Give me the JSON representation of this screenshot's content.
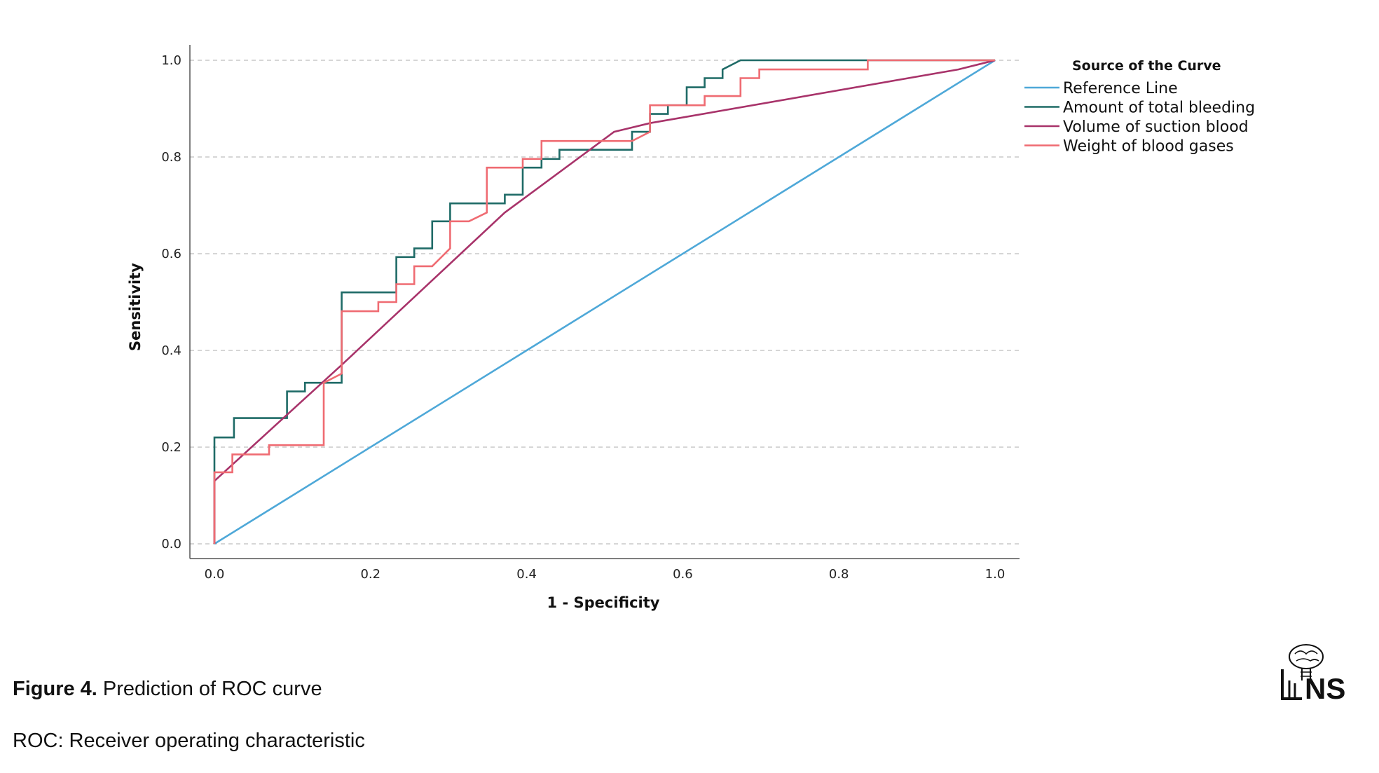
{
  "chart_data": {
    "type": "line",
    "title": "",
    "xlabel": "1 - Specificity",
    "ylabel": "Sensitivity",
    "xlim": [
      0,
      1
    ],
    "ylim": [
      0,
      1
    ],
    "x_ticks": [
      "0.0",
      "0.2",
      "0.4",
      "0.6",
      "0.8",
      "1.0"
    ],
    "y_ticks": [
      "0.0",
      "0.2",
      "0.4",
      "0.6",
      "0.8",
      "1.0"
    ],
    "grid": "horizontal dashed",
    "legend_title": "Source of the Curve",
    "legend_position": "right",
    "series": [
      {
        "name": "Reference Line",
        "color": "#4ea8d8",
        "points": [
          [
            0,
            0
          ],
          [
            1,
            1
          ]
        ]
      },
      {
        "name": "Amount of total bleeding",
        "color": "#1f6b67",
        "points": [
          [
            0,
            0
          ],
          [
            0,
            0.22
          ],
          [
            0.025,
            0.22
          ],
          [
            0.025,
            0.26
          ],
          [
            0.093,
            0.26
          ],
          [
            0.093,
            0.315
          ],
          [
            0.116,
            0.315
          ],
          [
            0.116,
            0.333
          ],
          [
            0.163,
            0.333
          ],
          [
            0.163,
            0.52
          ],
          [
            0.233,
            0.52
          ],
          [
            0.233,
            0.593
          ],
          [
            0.256,
            0.593
          ],
          [
            0.256,
            0.611
          ],
          [
            0.279,
            0.611
          ],
          [
            0.279,
            0.667
          ],
          [
            0.302,
            0.667
          ],
          [
            0.302,
            0.704
          ],
          [
            0.372,
            0.704
          ],
          [
            0.372,
            0.722
          ],
          [
            0.395,
            0.722
          ],
          [
            0.395,
            0.778
          ],
          [
            0.419,
            0.778
          ],
          [
            0.419,
            0.796
          ],
          [
            0.442,
            0.796
          ],
          [
            0.442,
            0.815
          ],
          [
            0.535,
            0.815
          ],
          [
            0.535,
            0.852
          ],
          [
            0.558,
            0.852
          ],
          [
            0.558,
            0.889
          ],
          [
            0.581,
            0.889
          ],
          [
            0.581,
            0.907
          ],
          [
            0.605,
            0.907
          ],
          [
            0.605,
            0.944
          ],
          [
            0.628,
            0.944
          ],
          [
            0.628,
            0.963
          ],
          [
            0.651,
            0.963
          ],
          [
            0.651,
            0.981
          ],
          [
            0.674,
            1.0
          ],
          [
            1.0,
            1.0
          ]
        ]
      },
      {
        "name": "Volume of suction blood",
        "color": "#a8336a",
        "points": [
          [
            0,
            0
          ],
          [
            0,
            0.13
          ],
          [
            0.163,
            0.37
          ],
          [
            0.372,
            0.685
          ],
          [
            0.512,
            0.852
          ],
          [
            0.558,
            0.87
          ],
          [
            0.953,
            0.981
          ],
          [
            1,
            1
          ]
        ]
      },
      {
        "name": "Weight of blood gases",
        "color": "#ef6b72",
        "points": [
          [
            0,
            0
          ],
          [
            0,
            0.148
          ],
          [
            0.023,
            0.148
          ],
          [
            0.023,
            0.185
          ],
          [
            0.07,
            0.185
          ],
          [
            0.07,
            0.204
          ],
          [
            0.14,
            0.204
          ],
          [
            0.14,
            0.333
          ],
          [
            0.163,
            0.352
          ],
          [
            0.163,
            0.481
          ],
          [
            0.21,
            0.481
          ],
          [
            0.21,
            0.5
          ],
          [
            0.233,
            0.5
          ],
          [
            0.233,
            0.537
          ],
          [
            0.256,
            0.537
          ],
          [
            0.256,
            0.574
          ],
          [
            0.279,
            0.574
          ],
          [
            0.302,
            0.611
          ],
          [
            0.302,
            0.667
          ],
          [
            0.326,
            0.667
          ],
          [
            0.349,
            0.685
          ],
          [
            0.349,
            0.778
          ],
          [
            0.395,
            0.778
          ],
          [
            0.395,
            0.796
          ],
          [
            0.419,
            0.796
          ],
          [
            0.419,
            0.833
          ],
          [
            0.535,
            0.833
          ],
          [
            0.558,
            0.852
          ],
          [
            0.558,
            0.907
          ],
          [
            0.628,
            0.907
          ],
          [
            0.628,
            0.926
          ],
          [
            0.674,
            0.926
          ],
          [
            0.674,
            0.963
          ],
          [
            0.698,
            0.963
          ],
          [
            0.698,
            0.981
          ],
          [
            0.837,
            0.981
          ],
          [
            0.837,
            1.0
          ],
          [
            1.0,
            1.0
          ]
        ]
      }
    ]
  },
  "caption": {
    "figure_label": "Figure 4.",
    "figure_text": " Prediction of ROC curve",
    "footnote": "ROC: Receiver operating characteristic"
  },
  "logo": {
    "text": "NS"
  }
}
